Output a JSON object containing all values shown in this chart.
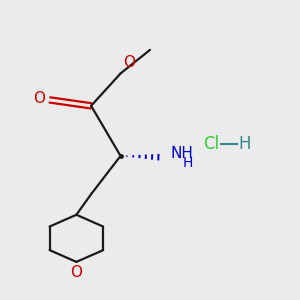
{
  "background_color": "#ebebeb",
  "bond_color": "#1a1a1a",
  "oxygen_color": "#cc0000",
  "nitrogen_color": "#0000cc",
  "hcl_color": "#33cc33",
  "hcl_h_color": "#338888",
  "figsize": [
    3.0,
    3.0
  ],
  "dpi": 100,
  "xlim": [
    0,
    10
  ],
  "ylim": [
    0,
    10
  ]
}
